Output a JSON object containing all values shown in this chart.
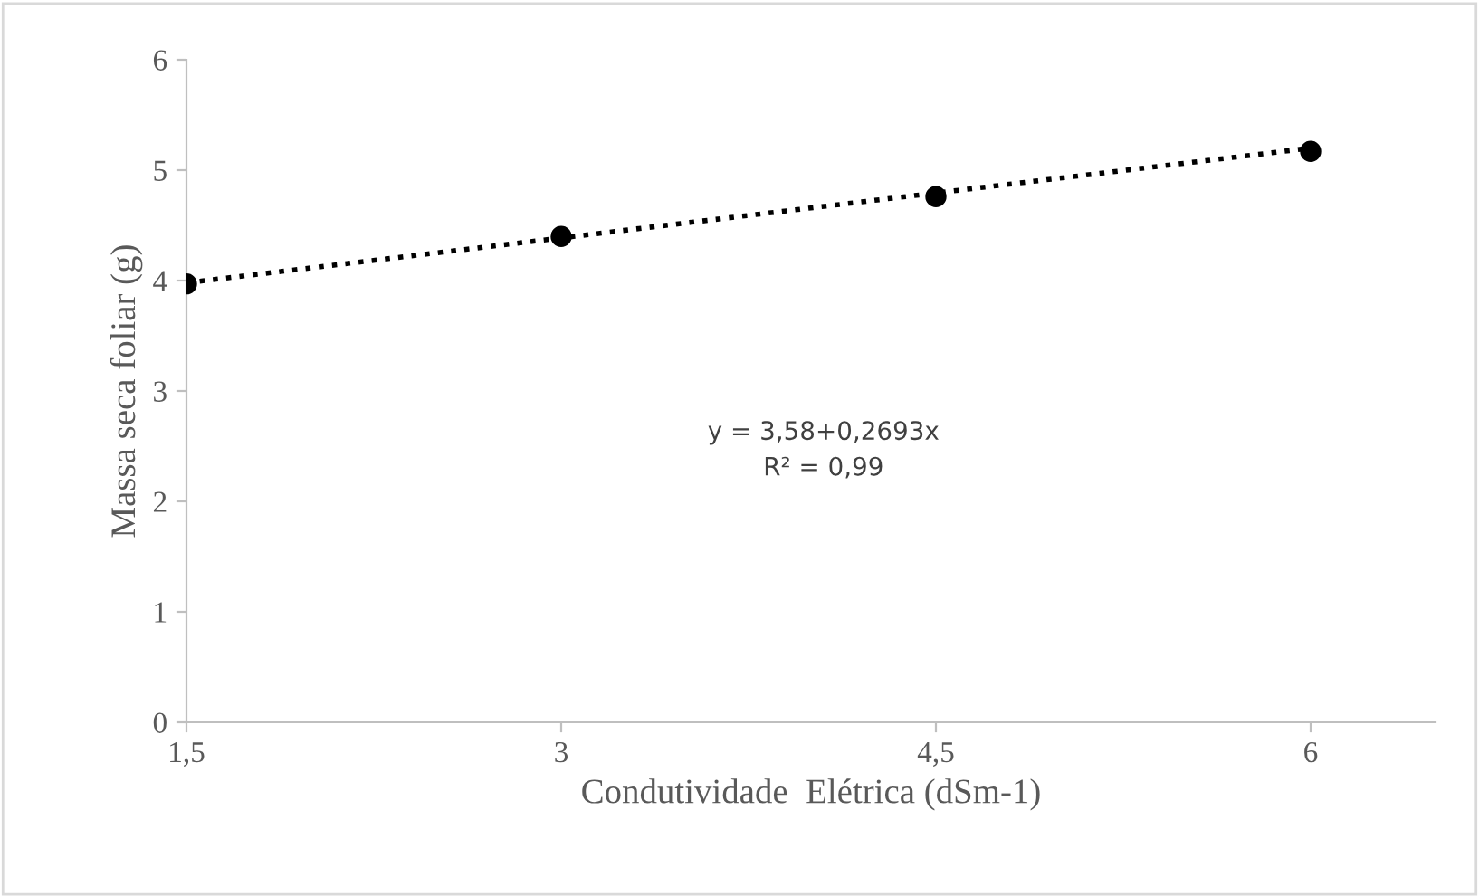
{
  "chart_data": {
    "type": "scatter",
    "xlabel": "Condutividade  Elétrica (dSm-1)",
    "ylabel": "Massa seca foliar (g)",
    "xlim": [
      1.5,
      6.5
    ],
    "xticks": [
      {
        "value": 1.5,
        "label": "1,5"
      },
      3,
      {
        "value": 4.5,
        "label": "4,5"
      },
      6
    ],
    "ylim": [
      0,
      6
    ],
    "yticks": [
      0,
      1,
      2,
      3,
      4,
      5,
      6
    ],
    "grid": false,
    "legend": false,
    "series": [
      {
        "color": "#000000",
        "marker": "circle",
        "x": [
          1.5,
          3,
          4.5,
          6
        ],
        "values": [
          3.97,
          4.4,
          4.76,
          5.17
        ]
      },
      {
        "type": "line",
        "color": "#000000",
        "line_style": "dotted",
        "marker": "none",
        "x": [
          1.5,
          6
        ],
        "values": [
          3.98,
          5.2
        ]
      }
    ],
    "annotations": [
      "y = 3,58+0,2693x\nR² = 0,99"
    ]
  }
}
